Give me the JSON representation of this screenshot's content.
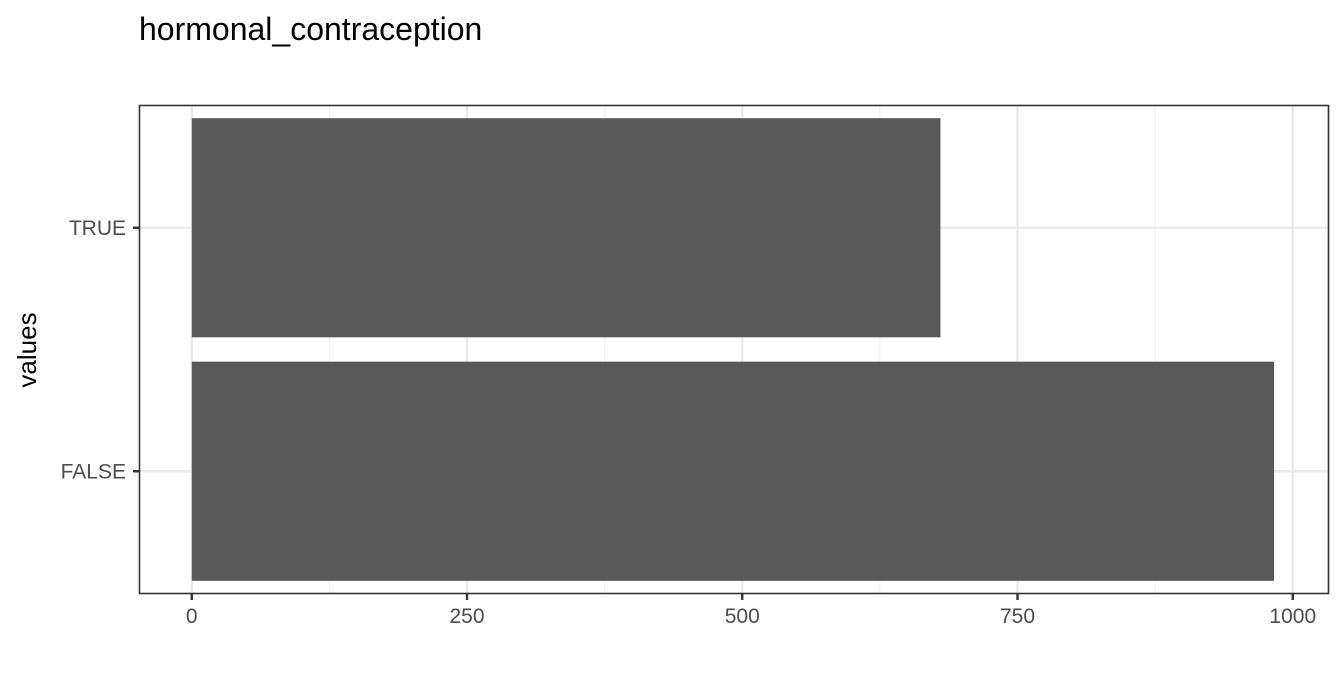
{
  "chart_data": {
    "type": "bar",
    "orientation": "horizontal",
    "title": "hormonal_contraception",
    "xlabel": "",
    "ylabel": "values",
    "categories": [
      "TRUE",
      "FALSE"
    ],
    "values": [
      680,
      983
    ],
    "xlim": [
      -47,
      1032
    ],
    "xticks": [
      0,
      250,
      500,
      750,
      1000
    ],
    "xtick_labels": [
      "0",
      "250",
      "500",
      "750",
      "1000"
    ],
    "grid": true,
    "legend": "none",
    "bar_color": "#595959"
  }
}
